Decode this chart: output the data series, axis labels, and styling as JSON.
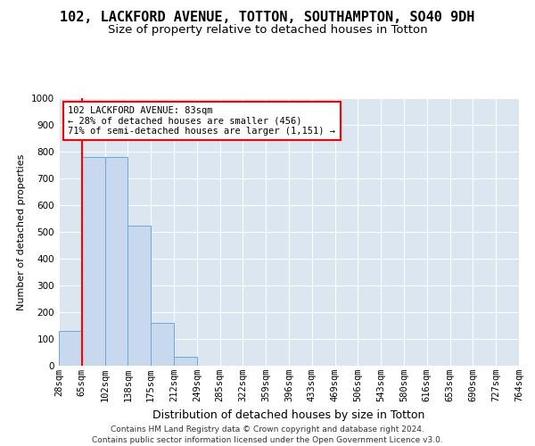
{
  "title1": "102, LACKFORD AVENUE, TOTTON, SOUTHAMPTON, SO40 9DH",
  "title2": "Size of property relative to detached houses in Totton",
  "xlabel": "Distribution of detached houses by size in Totton",
  "ylabel": "Number of detached properties",
  "footnote": "Contains HM Land Registry data © Crown copyright and database right 2024.\nContains public sector information licensed under the Open Government Licence v3.0.",
  "bin_labels": [
    "28sqm",
    "65sqm",
    "102sqm",
    "138sqm",
    "175sqm",
    "212sqm",
    "249sqm",
    "285sqm",
    "322sqm",
    "359sqm",
    "396sqm",
    "433sqm",
    "469sqm",
    "506sqm",
    "543sqm",
    "580sqm",
    "616sqm",
    "653sqm",
    "690sqm",
    "727sqm",
    "764sqm"
  ],
  "bar_values": [
    130,
    780,
    780,
    525,
    160,
    35,
    0,
    0,
    0,
    0,
    0,
    0,
    0,
    0,
    0,
    0,
    0,
    0,
    0,
    0
  ],
  "bar_color": "#c8d9ee",
  "bar_edge_color": "#6aaad4",
  "annotation_line1": "102 LACKFORD AVENUE: 83sqm",
  "annotation_line2": "← 28% of detached houses are smaller (456)",
  "annotation_line3": "71% of semi-detached houses are larger (1,151) →",
  "annotation_box_color": "red",
  "annotation_fill": "white",
  "vline_color": "red",
  "vline_x": 1.0,
  "ylim": [
    0,
    1000
  ],
  "yticks": [
    0,
    100,
    200,
    300,
    400,
    500,
    600,
    700,
    800,
    900,
    1000
  ],
  "plot_bg_color": "#dce6f1",
  "grid_color": "white",
  "title1_fontsize": 11,
  "title2_fontsize": 9.5,
  "xlabel_fontsize": 9,
  "ylabel_fontsize": 8,
  "tick_fontsize": 7.5,
  "annot_fontsize": 7.5,
  "footnote_fontsize": 6.5
}
